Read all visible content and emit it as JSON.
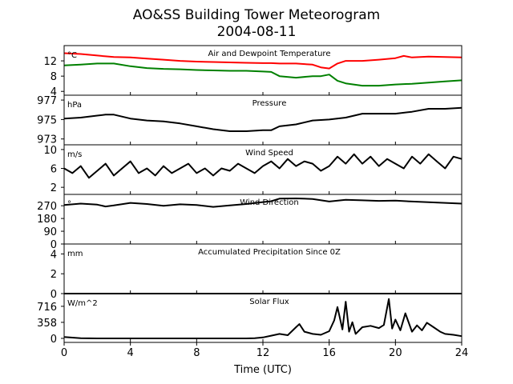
{
  "figure": {
    "title": "AO&SS Building Tower Meteorogram",
    "subtitle": "2004-08-11",
    "xlabel": "Time (UTC)"
  },
  "chart_data": [
    {
      "type": "line",
      "title": "Air and Dewpoint Temperature",
      "unit": "°C",
      "xlim": [
        0,
        24
      ],
      "xticks": [
        0,
        4,
        8,
        12,
        16,
        20,
        24
      ],
      "ylim": [
        3,
        16
      ],
      "yticks": [
        4,
        8,
        12
      ],
      "series": [
        {
          "color": "#ff0000",
          "x": [
            0,
            1,
            2,
            2.5,
            3,
            4,
            5,
            6,
            7,
            8,
            9,
            10,
            11,
            12,
            12.5,
            13,
            14,
            15,
            15.5,
            16,
            16.5,
            17,
            18,
            19,
            20,
            20.5,
            21,
            22,
            23,
            24
          ],
          "y": [
            14,
            13.8,
            13.4,
            13.2,
            13,
            12.9,
            12.6,
            12.3,
            12,
            11.8,
            11.7,
            11.6,
            11.5,
            11.4,
            11.4,
            11.3,
            11.3,
            11,
            10.3,
            10,
            11.3,
            12,
            12,
            12.3,
            12.7,
            13.3,
            12.9,
            13.1,
            13,
            12.9
          ]
        },
        {
          "color": "#008000",
          "x": [
            0,
            1,
            2,
            2.5,
            3,
            4,
            5,
            6,
            7,
            8,
            9,
            10,
            11,
            12,
            12.5,
            13,
            14,
            15,
            15.5,
            16,
            16.5,
            17,
            18,
            19,
            20,
            21,
            22,
            23,
            24
          ],
          "y": [
            10.8,
            11,
            11.3,
            11.3,
            11.3,
            10.6,
            10.1,
            9.9,
            9.8,
            9.6,
            9.5,
            9.4,
            9.4,
            9.2,
            9.1,
            8,
            7.6,
            8,
            8,
            8.4,
            6.8,
            6.1,
            5.5,
            5.5,
            5.8,
            6,
            6.3,
            6.6,
            6.9
          ]
        }
      ]
    },
    {
      "type": "line",
      "title": "Pressure",
      "unit": "hPa",
      "xlim": [
        0,
        24
      ],
      "ylim": [
        972.4,
        977.5
      ],
      "yticks": [
        973,
        975,
        977
      ],
      "series": [
        {
          "color": "#000000",
          "x": [
            0,
            1,
            2,
            2.5,
            3,
            4,
            5,
            6,
            7,
            8,
            9,
            10,
            11,
            12,
            12.5,
            13,
            14,
            15,
            16,
            17,
            18,
            19,
            20,
            21,
            22,
            23,
            24
          ],
          "y": [
            975.1,
            975.2,
            975.4,
            975.5,
            975.5,
            975.1,
            974.9,
            974.8,
            974.6,
            974.3,
            974,
            973.8,
            973.8,
            973.9,
            973.9,
            974.3,
            974.5,
            974.9,
            975,
            975.2,
            975.6,
            975.6,
            975.6,
            975.8,
            976.1,
            976.1,
            976.2
          ]
        }
      ]
    },
    {
      "type": "line",
      "title": "Wind Speed",
      "unit": "m/s",
      "xlim": [
        0,
        24
      ],
      "ylim": [
        0.5,
        11
      ],
      "yticks": [
        2,
        6,
        10
      ],
      "series": [
        {
          "color": "#000000",
          "x": [
            0,
            0.5,
            1,
            1.5,
            2,
            2.5,
            3,
            3.5,
            4,
            4.5,
            5,
            5.5,
            6,
            6.5,
            7,
            7.5,
            8,
            8.5,
            9,
            9.5,
            10,
            10.5,
            11,
            11.5,
            12,
            12.5,
            13,
            13.5,
            14,
            14.5,
            15,
            15.5,
            16,
            16.5,
            17,
            17.5,
            18,
            18.5,
            19,
            19.5,
            20,
            20.5,
            21,
            21.5,
            22,
            22.5,
            23,
            23.5,
            24
          ],
          "y": [
            6,
            5,
            6.5,
            4,
            5.5,
            7,
            4.5,
            6,
            7.5,
            5,
            6,
            4.5,
            6.5,
            5,
            6,
            7,
            5,
            6,
            4.5,
            6,
            5.5,
            7,
            6,
            5,
            6.5,
            7.5,
            6,
            8,
            6.5,
            7.5,
            7,
            5.5,
            6.5,
            8.5,
            7,
            9,
            7,
            8.5,
            6.5,
            8,
            7,
            6,
            8.5,
            7,
            9,
            7.5,
            6,
            8.5,
            8
          ]
        }
      ]
    },
    {
      "type": "line",
      "title": "Wind Direction",
      "unit": "°",
      "xlim": [
        0,
        24
      ],
      "ylim": [
        0,
        350
      ],
      "yticks": [
        0,
        90,
        180,
        270
      ],
      "series": [
        {
          "color": "#000000",
          "x": [
            0,
            1,
            2,
            2.5,
            3,
            4,
            5,
            6,
            7,
            8,
            9,
            10,
            11,
            12,
            12.5,
            13,
            14,
            15,
            16,
            17,
            18,
            19,
            20,
            21,
            22,
            23,
            24
          ],
          "y": [
            275,
            285,
            278,
            265,
            272,
            290,
            282,
            270,
            280,
            275,
            262,
            272,
            282,
            296,
            302,
            320,
            322,
            318,
            300,
            312,
            308,
            304,
            306,
            300,
            295,
            290,
            285
          ]
        }
      ]
    },
    {
      "type": "line",
      "title": "Accumulated Precipitation Since 0Z",
      "unit": "mm",
      "xlim": [
        0,
        24
      ],
      "ylim": [
        0,
        5
      ],
      "yticks": [
        0,
        2,
        4
      ],
      "series": [
        {
          "color": "#000000",
          "x": [
            0,
            24
          ],
          "y": [
            0,
            0
          ]
        }
      ]
    },
    {
      "type": "line",
      "title": "Solar Flux",
      "unit": "W/m^2",
      "xlim": [
        0,
        24
      ],
      "ylim": [
        -90,
        1000
      ],
      "yticks": [
        0,
        358,
        716
      ],
      "series": [
        {
          "color": "#000000",
          "x": [
            0,
            1,
            2,
            3,
            4,
            5,
            6,
            7,
            8,
            9,
            10,
            11,
            11.5,
            12,
            12.5,
            13,
            13.5,
            14,
            14.2,
            14.5,
            15,
            15.5,
            16,
            16.3,
            16.5,
            16.8,
            17,
            17.2,
            17.4,
            17.6,
            18,
            18.5,
            19,
            19.3,
            19.6,
            19.8,
            20,
            20.3,
            20.6,
            21,
            21.3,
            21.6,
            21.9,
            22.3,
            22.7,
            23,
            23.5,
            24
          ],
          "y": [
            30,
            5,
            0,
            0,
            0,
            0,
            0,
            0,
            0,
            0,
            0,
            0,
            5,
            20,
            60,
            100,
            70,
            250,
            320,
            150,
            100,
            80,
            160,
            400,
            700,
            200,
            820,
            150,
            360,
            100,
            250,
            280,
            230,
            300,
            880,
            220,
            420,
            180,
            560,
            150,
            290,
            180,
            350,
            250,
            150,
            100,
            80,
            50
          ]
        }
      ]
    }
  ]
}
